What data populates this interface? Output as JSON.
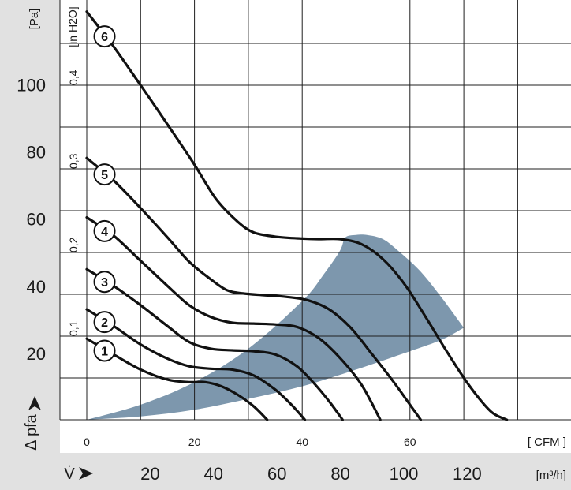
{
  "chart_data": {
    "type": "line",
    "colors": {
      "background_gray": "#e1e1e1",
      "operating_area": "#7d97ad",
      "curves": "#111111",
      "grid": "#1f1f1f"
    },
    "y_unit_pa": "[Pa]",
    "y_unit_inh2o": "[in H2O]",
    "y_label_pa": "Δ pfa",
    "y_ticks_pa": [
      "20",
      "40",
      "60",
      "80",
      "100"
    ],
    "y_ticks_inh2o": [
      "0,1",
      "0,2",
      "0,3",
      "0,4"
    ],
    "x_unit_cfm": "[ CFM ]",
    "x_ticks_cfm": [
      "0",
      "20",
      "40",
      "60"
    ],
    "x_label_m3h": "V̇",
    "x_unit_m3h": "[m³/h]",
    "x_ticks_m3h": [
      "20",
      "40",
      "60",
      "80",
      "100",
      "120"
    ],
    "xlim_cfm": [
      0,
      90
    ],
    "ylim_inh2o": [
      0,
      0.49
    ],
    "grid": true,
    "series": [
      {
        "name": "1",
        "points": [
          [
            0,
            0.097
          ],
          [
            5,
            0.078
          ],
          [
            10,
            0.06
          ],
          [
            15,
            0.048
          ],
          [
            19,
            0.045
          ],
          [
            22,
            0.045
          ],
          [
            25,
            0.04
          ],
          [
            28,
            0.03
          ],
          [
            31,
            0.016
          ],
          [
            33.5,
            0
          ]
        ]
      },
      {
        "name": "2",
        "points": [
          [
            0,
            0.132
          ],
          [
            5,
            0.112
          ],
          [
            10,
            0.09
          ],
          [
            15,
            0.073
          ],
          [
            19,
            0.064
          ],
          [
            23,
            0.061
          ],
          [
            27,
            0.06
          ],
          [
            31,
            0.053
          ],
          [
            35,
            0.036
          ],
          [
            38,
            0.018
          ],
          [
            40.5,
            0
          ]
        ]
      },
      {
        "name": "3",
        "points": [
          [
            0,
            0.18
          ],
          [
            5,
            0.16
          ],
          [
            10,
            0.137
          ],
          [
            15,
            0.112
          ],
          [
            19,
            0.093
          ],
          [
            23,
            0.085
          ],
          [
            27,
            0.083
          ],
          [
            31,
            0.082
          ],
          [
            35,
            0.078
          ],
          [
            39,
            0.064
          ],
          [
            42,
            0.045
          ],
          [
            45,
            0.022
          ],
          [
            47.5,
            0
          ]
        ]
      },
      {
        "name": "4",
        "points": [
          [
            0,
            0.242
          ],
          [
            5,
            0.22
          ],
          [
            10,
            0.19
          ],
          [
            15,
            0.16
          ],
          [
            19,
            0.137
          ],
          [
            23,
            0.123
          ],
          [
            27,
            0.116
          ],
          [
            31,
            0.115
          ],
          [
            35,
            0.114
          ],
          [
            39,
            0.111
          ],
          [
            43,
            0.098
          ],
          [
            47,
            0.074
          ],
          [
            51,
            0.042
          ],
          [
            54.5,
            0
          ]
        ]
      },
      {
        "name": "5",
        "points": [
          [
            0,
            0.313
          ],
          [
            5,
            0.286
          ],
          [
            10,
            0.253
          ],
          [
            15,
            0.218
          ],
          [
            19,
            0.189
          ],
          [
            23,
            0.168
          ],
          [
            26,
            0.155
          ],
          [
            29,
            0.151
          ],
          [
            33,
            0.149
          ],
          [
            37,
            0.147
          ],
          [
            41,
            0.143
          ],
          [
            45,
            0.132
          ],
          [
            49,
            0.11
          ],
          [
            53,
            0.078
          ],
          [
            57,
            0.045
          ],
          [
            60,
            0.018
          ],
          [
            62,
            0
          ]
        ]
      },
      {
        "name": "6",
        "points": [
          [
            0,
            0.488
          ],
          [
            5,
            0.446
          ],
          [
            10,
            0.4
          ],
          [
            15,
            0.353
          ],
          [
            20,
            0.305
          ],
          [
            24,
            0.264
          ],
          [
            28,
            0.237
          ],
          [
            31,
            0.224
          ],
          [
            35,
            0.219
          ],
          [
            39,
            0.217
          ],
          [
            43,
            0.216
          ],
          [
            47,
            0.216
          ],
          [
            51,
            0.21
          ],
          [
            55,
            0.192
          ],
          [
            59,
            0.162
          ],
          [
            63,
            0.122
          ],
          [
            67,
            0.08
          ],
          [
            71,
            0.041
          ],
          [
            75,
            0.01
          ],
          [
            78,
            0
          ]
        ]
      }
    ],
    "operating_area": {
      "upper": [
        [
          0,
          0
        ],
        [
          10,
          0.018
        ],
        [
          20,
          0.045
        ],
        [
          30,
          0.085
        ],
        [
          40,
          0.142
        ],
        [
          44,
          0.174
        ],
        [
          47,
          0.202
        ],
        [
          48,
          0.218
        ],
        [
          50,
          0.221
        ],
        [
          52,
          0.221
        ],
        [
          55,
          0.216
        ],
        [
          58,
          0.201
        ],
        [
          62,
          0.177
        ],
        [
          66,
          0.145
        ],
        [
          70,
          0.11
        ]
      ],
      "lower": [
        [
          70,
          0.11
        ],
        [
          66,
          0.096
        ],
        [
          60,
          0.082
        ],
        [
          50,
          0.06
        ],
        [
          40,
          0.04
        ],
        [
          30,
          0.025
        ],
        [
          20,
          0.012
        ],
        [
          10,
          0.004
        ],
        [
          0,
          0
        ]
      ]
    }
  }
}
